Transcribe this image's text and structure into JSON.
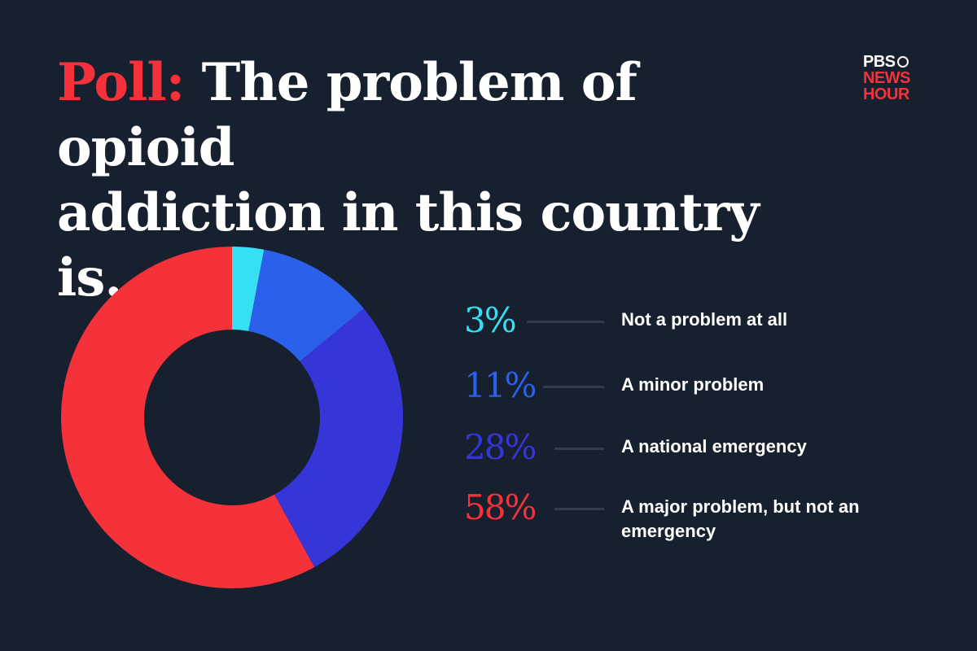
{
  "header": {
    "title_keyword": "Poll:",
    "title_line1": "The problem of opioid",
    "title_line2": "addiction in this country is..."
  },
  "logo": {
    "pbs": "PBS",
    "news": "NEWS",
    "hour": "HOUR"
  },
  "chart_data": {
    "type": "pie",
    "style": "donut",
    "title": "Poll: The problem of opioid addiction in this country is...",
    "slices": [
      {
        "label": "Not a problem at all",
        "value": 3,
        "value_label": "3%",
        "color": "#35e0f5"
      },
      {
        "label": "A minor problem",
        "value": 11,
        "value_label": "11%",
        "color": "#2b60eb"
      },
      {
        "label": "A national emergency",
        "value": 28,
        "value_label": "28%",
        "color": "#3535d8"
      },
      {
        "label": "A major problem, but not an emergency",
        "value": 58,
        "value_label": "58%",
        "color": "#f5323a"
      }
    ],
    "legend_position": "right"
  }
}
